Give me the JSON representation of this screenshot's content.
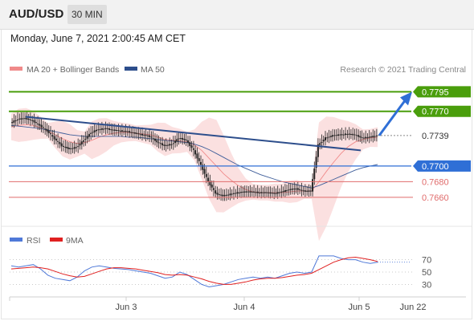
{
  "header": {
    "symbol": "AUD/USD",
    "timeframe": "30 MIN"
  },
  "datetime": "Monday, June 7, 2021 2:00:45 AM CET",
  "credit": "Research © 2021 Trading Central",
  "colors": {
    "resistance": "#4a9e0c",
    "support_pivot": "#2f6fd6",
    "support": "#e06b6b",
    "current": "#333333",
    "trend": "#2d4e8c",
    "bollinger": "#f7c7c7",
    "ma20": "#f08a8a",
    "ma50": "#3f5e9a",
    "rsi": "#4f79d8",
    "rsi_ma": "#e02020",
    "candle": "#222222"
  },
  "chart_data": [
    {
      "type": "candlestick",
      "legend": [
        {
          "label": "MA 20 + Bollinger Bands",
          "color": "#f08a8a"
        },
        {
          "label": "MA 50",
          "color": "#2d4e8c"
        }
      ],
      "levels": [
        {
          "value": 0.7795,
          "label": "0.7795",
          "kind": "resistance"
        },
        {
          "value": 0.777,
          "label": "0.7770",
          "kind": "resistance"
        },
        {
          "value": 0.7739,
          "label": "0.7739",
          "kind": "current"
        },
        {
          "value": 0.77,
          "label": "0.7700",
          "kind": "pivot"
        },
        {
          "value": 0.768,
          "label": "0.7680",
          "kind": "support"
        },
        {
          "value": 0.766,
          "label": "0.7660",
          "kind": "support"
        }
      ],
      "ylim": [
        0.7625,
        0.782
      ],
      "x_ticks": [
        "Jun 3",
        "Jun 4",
        "Jun 5",
        "Jun 22"
      ],
      "close_series": [
        0.7755,
        0.776,
        0.7761,
        0.7758,
        0.7752,
        0.7745,
        0.7735,
        0.7726,
        0.7722,
        0.7724,
        0.7733,
        0.7743,
        0.7747,
        0.7748,
        0.7746,
        0.7745,
        0.7744,
        0.7742,
        0.774,
        0.7738,
        0.7731,
        0.7726,
        0.7728,
        0.7736,
        0.7733,
        0.772,
        0.7701,
        0.768,
        0.7665,
        0.7662,
        0.7664,
        0.7666,
        0.7667,
        0.7667,
        0.7666,
        0.7666,
        0.7665,
        0.7667,
        0.767,
        0.7671,
        0.7668,
        0.7668,
        0.7727,
        0.7736,
        0.7739,
        0.774,
        0.7741,
        0.774,
        0.7736,
        0.7737,
        0.7739
      ],
      "ma20": [
        0.775,
        0.7752,
        0.7753,
        0.7752,
        0.7749,
        0.7745,
        0.774,
        0.7735,
        0.7731,
        0.7729,
        0.773,
        0.7733,
        0.7737,
        0.774,
        0.7742,
        0.7743,
        0.7743,
        0.7742,
        0.7741,
        0.774,
        0.7737,
        0.7734,
        0.7733,
        0.7732,
        0.7731,
        0.7727,
        0.772,
        0.771,
        0.77,
        0.769,
        0.7682,
        0.7675,
        0.767,
        0.7667,
        0.7666,
        0.7666,
        0.7666,
        0.7666,
        0.7667,
        0.7668,
        0.7668,
        0.7668,
        0.768,
        0.7693,
        0.7705,
        0.7716,
        0.7725,
        0.7731,
        0.7734,
        0.7736,
        0.7737
      ],
      "ma50": [
        0.7752,
        0.7751,
        0.775,
        0.7749,
        0.7748,
        0.7746,
        0.7744,
        0.7742,
        0.774,
        0.7739,
        0.7738,
        0.7738,
        0.7738,
        0.7738,
        0.7738,
        0.7738,
        0.7737,
        0.7737,
        0.7736,
        0.7735,
        0.7734,
        0.7733,
        0.7732,
        0.7731,
        0.773,
        0.7728,
        0.7725,
        0.7721,
        0.7716,
        0.7711,
        0.7706,
        0.7701,
        0.7697,
        0.7693,
        0.7689,
        0.7686,
        0.7683,
        0.768,
        0.7678,
        0.7676,
        0.7674,
        0.7672,
        0.7675,
        0.7679,
        0.7683,
        0.7687,
        0.7691,
        0.7695,
        0.7698,
        0.77,
        0.7702
      ],
      "trendline": [
        [
          0.7763
        ],
        [
          0.772
        ]
      ],
      "projection": {
        "from": 0.7739,
        "to": 0.7795
      }
    },
    {
      "type": "line",
      "legend": [
        {
          "label": "RSI",
          "color": "#4f79d8"
        },
        {
          "label": "9MA",
          "color": "#e02020"
        }
      ],
      "ylim": [
        15,
        85
      ],
      "y_ticks": [
        70,
        50,
        30
      ],
      "rsi": [
        60,
        58,
        60,
        62,
        55,
        45,
        40,
        38,
        36,
        42,
        52,
        58,
        60,
        58,
        56,
        55,
        54,
        52,
        50,
        48,
        44,
        40,
        42,
        50,
        46,
        38,
        30,
        26,
        28,
        30,
        34,
        38,
        40,
        42,
        40,
        42,
        40,
        44,
        48,
        50,
        48,
        50,
        76,
        76,
        76,
        72,
        70,
        70,
        66,
        64,
        66
      ],
      "rsi_ma": [
        55,
        56,
        57,
        58,
        57,
        55,
        51,
        47,
        44,
        42,
        43,
        47,
        51,
        55,
        57,
        57,
        56,
        55,
        53,
        51,
        49,
        46,
        45,
        46,
        45,
        42,
        39,
        35,
        32,
        30,
        30,
        32,
        34,
        37,
        39,
        40,
        40,
        41,
        43,
        45,
        46,
        48,
        54,
        60,
        66,
        70,
        73,
        74,
        72,
        70,
        67
      ]
    }
  ]
}
